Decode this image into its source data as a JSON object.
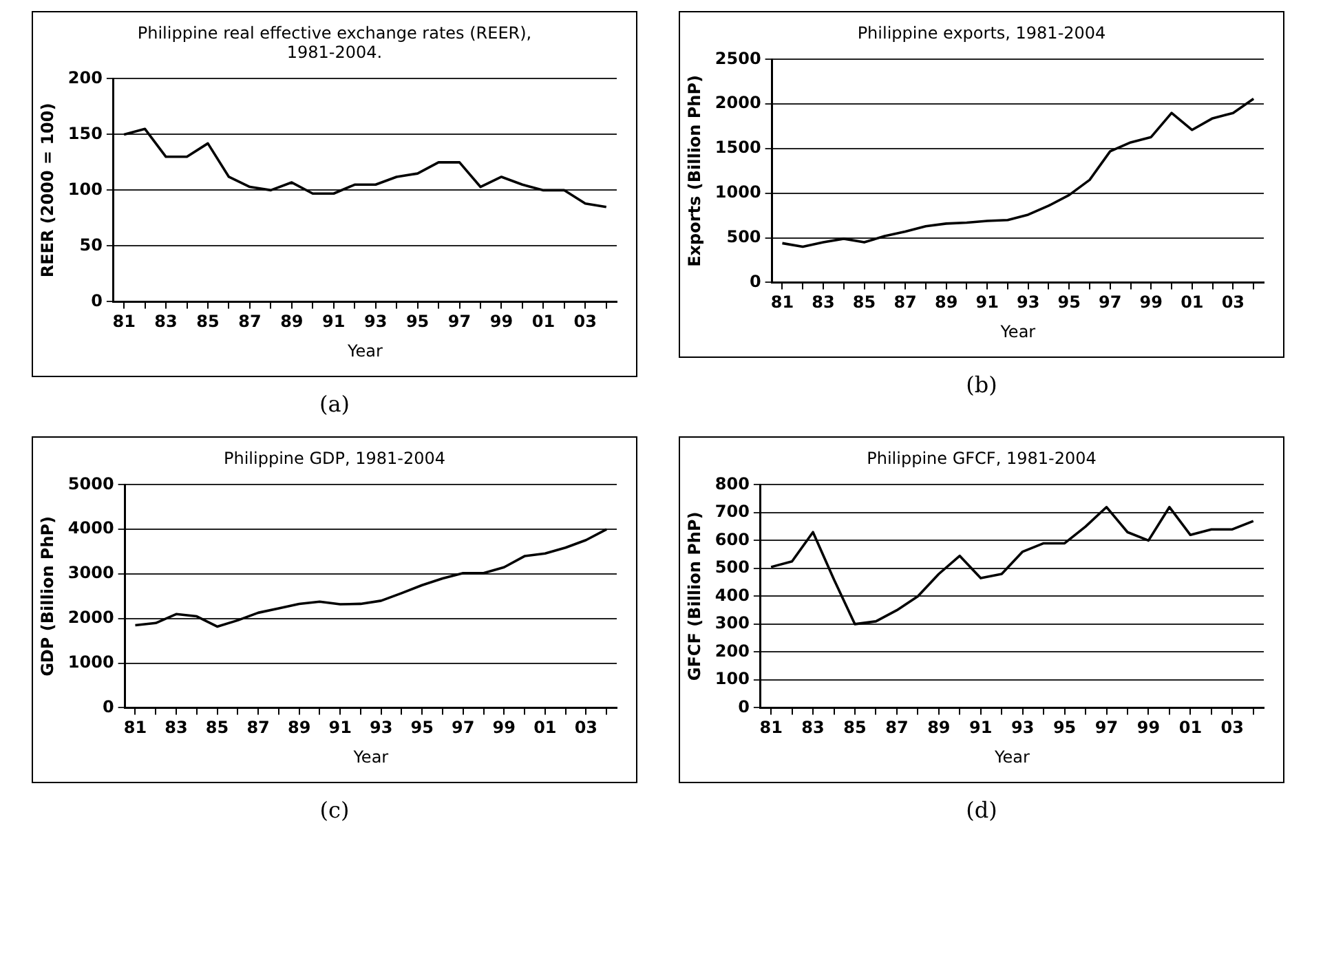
{
  "chart_data": [
    {
      "type": "line",
      "title": "Philippine real effective exchange rates (REER), 1981-2004.",
      "xlabel": "Year",
      "ylabel": "REER (2000 = 100)",
      "annotations": [
        "(a)"
      ],
      "categories": [
        "81",
        null,
        "83",
        null,
        "85",
        null,
        "87",
        null,
        "89",
        null,
        "91",
        null,
        "93",
        null,
        "95",
        null,
        "97",
        null,
        "99",
        null,
        "01",
        null,
        "03",
        null
      ],
      "series": [
        {
          "color": "#000000",
          "values": [
            150,
            155,
            130,
            130,
            142,
            112,
            103,
            100,
            107,
            97,
            97,
            105,
            105,
            112,
            115,
            125,
            125,
            103,
            112,
            105,
            100,
            100,
            88,
            85
          ]
        }
      ],
      "ylim": [
        0,
        200
      ],
      "yticks": [
        0,
        50,
        100,
        150,
        200
      ],
      "grid": "y",
      "marker": "none",
      "line_style": "solid",
      "legend": false
    },
    {
      "type": "line",
      "title": "Philippine exports, 1981-2004",
      "xlabel": "Year",
      "ylabel": "Exports (Billion PhP)",
      "annotations": [
        "(b)"
      ],
      "categories": [
        "81",
        null,
        "83",
        null,
        "85",
        null,
        "87",
        null,
        "89",
        null,
        "91",
        null,
        "93",
        null,
        "95",
        null,
        "97",
        null,
        "99",
        null,
        "01",
        null,
        "03",
        null
      ],
      "series": [
        {
          "color": "#000000",
          "values": [
            440,
            400,
            450,
            490,
            450,
            520,
            570,
            630,
            660,
            670,
            690,
            700,
            760,
            860,
            980,
            1150,
            1470,
            1570,
            1630,
            1900,
            1710,
            1840,
            1900,
            2060
          ]
        }
      ],
      "ylim": [
        0,
        2500
      ],
      "yticks": [
        0,
        500,
        1000,
        1500,
        2000,
        2500
      ],
      "grid": "y",
      "marker": "none",
      "line_style": "solid",
      "legend": false
    },
    {
      "type": "line",
      "title": "Philippine GDP, 1981-2004",
      "xlabel": "Year",
      "ylabel": "GDP (Billion PhP)",
      "annotations": [
        "(c)"
      ],
      "categories": [
        "81",
        null,
        "83",
        null,
        "85",
        null,
        "87",
        null,
        "89",
        null,
        "91",
        null,
        "93",
        null,
        "95",
        null,
        "97",
        null,
        "99",
        null,
        "01",
        null,
        "03",
        null
      ],
      "series": [
        {
          "color": "#000000",
          "values": [
            1850,
            1900,
            2100,
            2050,
            1820,
            1960,
            2130,
            2230,
            2330,
            2380,
            2320,
            2330,
            2400,
            2570,
            2750,
            2900,
            3020,
            3020,
            3150,
            3400,
            3460,
            3590,
            3760,
            4000
          ]
        }
      ],
      "ylim": [
        0,
        5000
      ],
      "yticks": [
        0,
        1000,
        2000,
        3000,
        4000,
        5000
      ],
      "grid": "y",
      "marker": "none",
      "line_style": "solid",
      "legend": false
    },
    {
      "type": "line",
      "title": "Philippine GFCF, 1981-2004",
      "xlabel": "Year",
      "ylabel": "GFCF (Billion PhP)",
      "annotations": [
        "(d)"
      ],
      "categories": [
        "81",
        null,
        "83",
        null,
        "85",
        null,
        "87",
        null,
        "89",
        null,
        "91",
        null,
        "93",
        null,
        "95",
        null,
        "97",
        null,
        "99",
        null,
        "01",
        null,
        "03",
        null
      ],
      "series": [
        {
          "color": "#000000",
          "values": [
            505,
            525,
            630,
            460,
            300,
            310,
            350,
            400,
            480,
            545,
            465,
            480,
            560,
            590,
            590,
            650,
            720,
            630,
            600,
            720,
            620,
            640,
            640,
            670
          ]
        }
      ],
      "ylim": [
        0,
        800
      ],
      "yticks": [
        0,
        100,
        200,
        300,
        400,
        500,
        600,
        700,
        800
      ],
      "grid": "y",
      "marker": "none",
      "line_style": "solid",
      "legend": false
    }
  ]
}
